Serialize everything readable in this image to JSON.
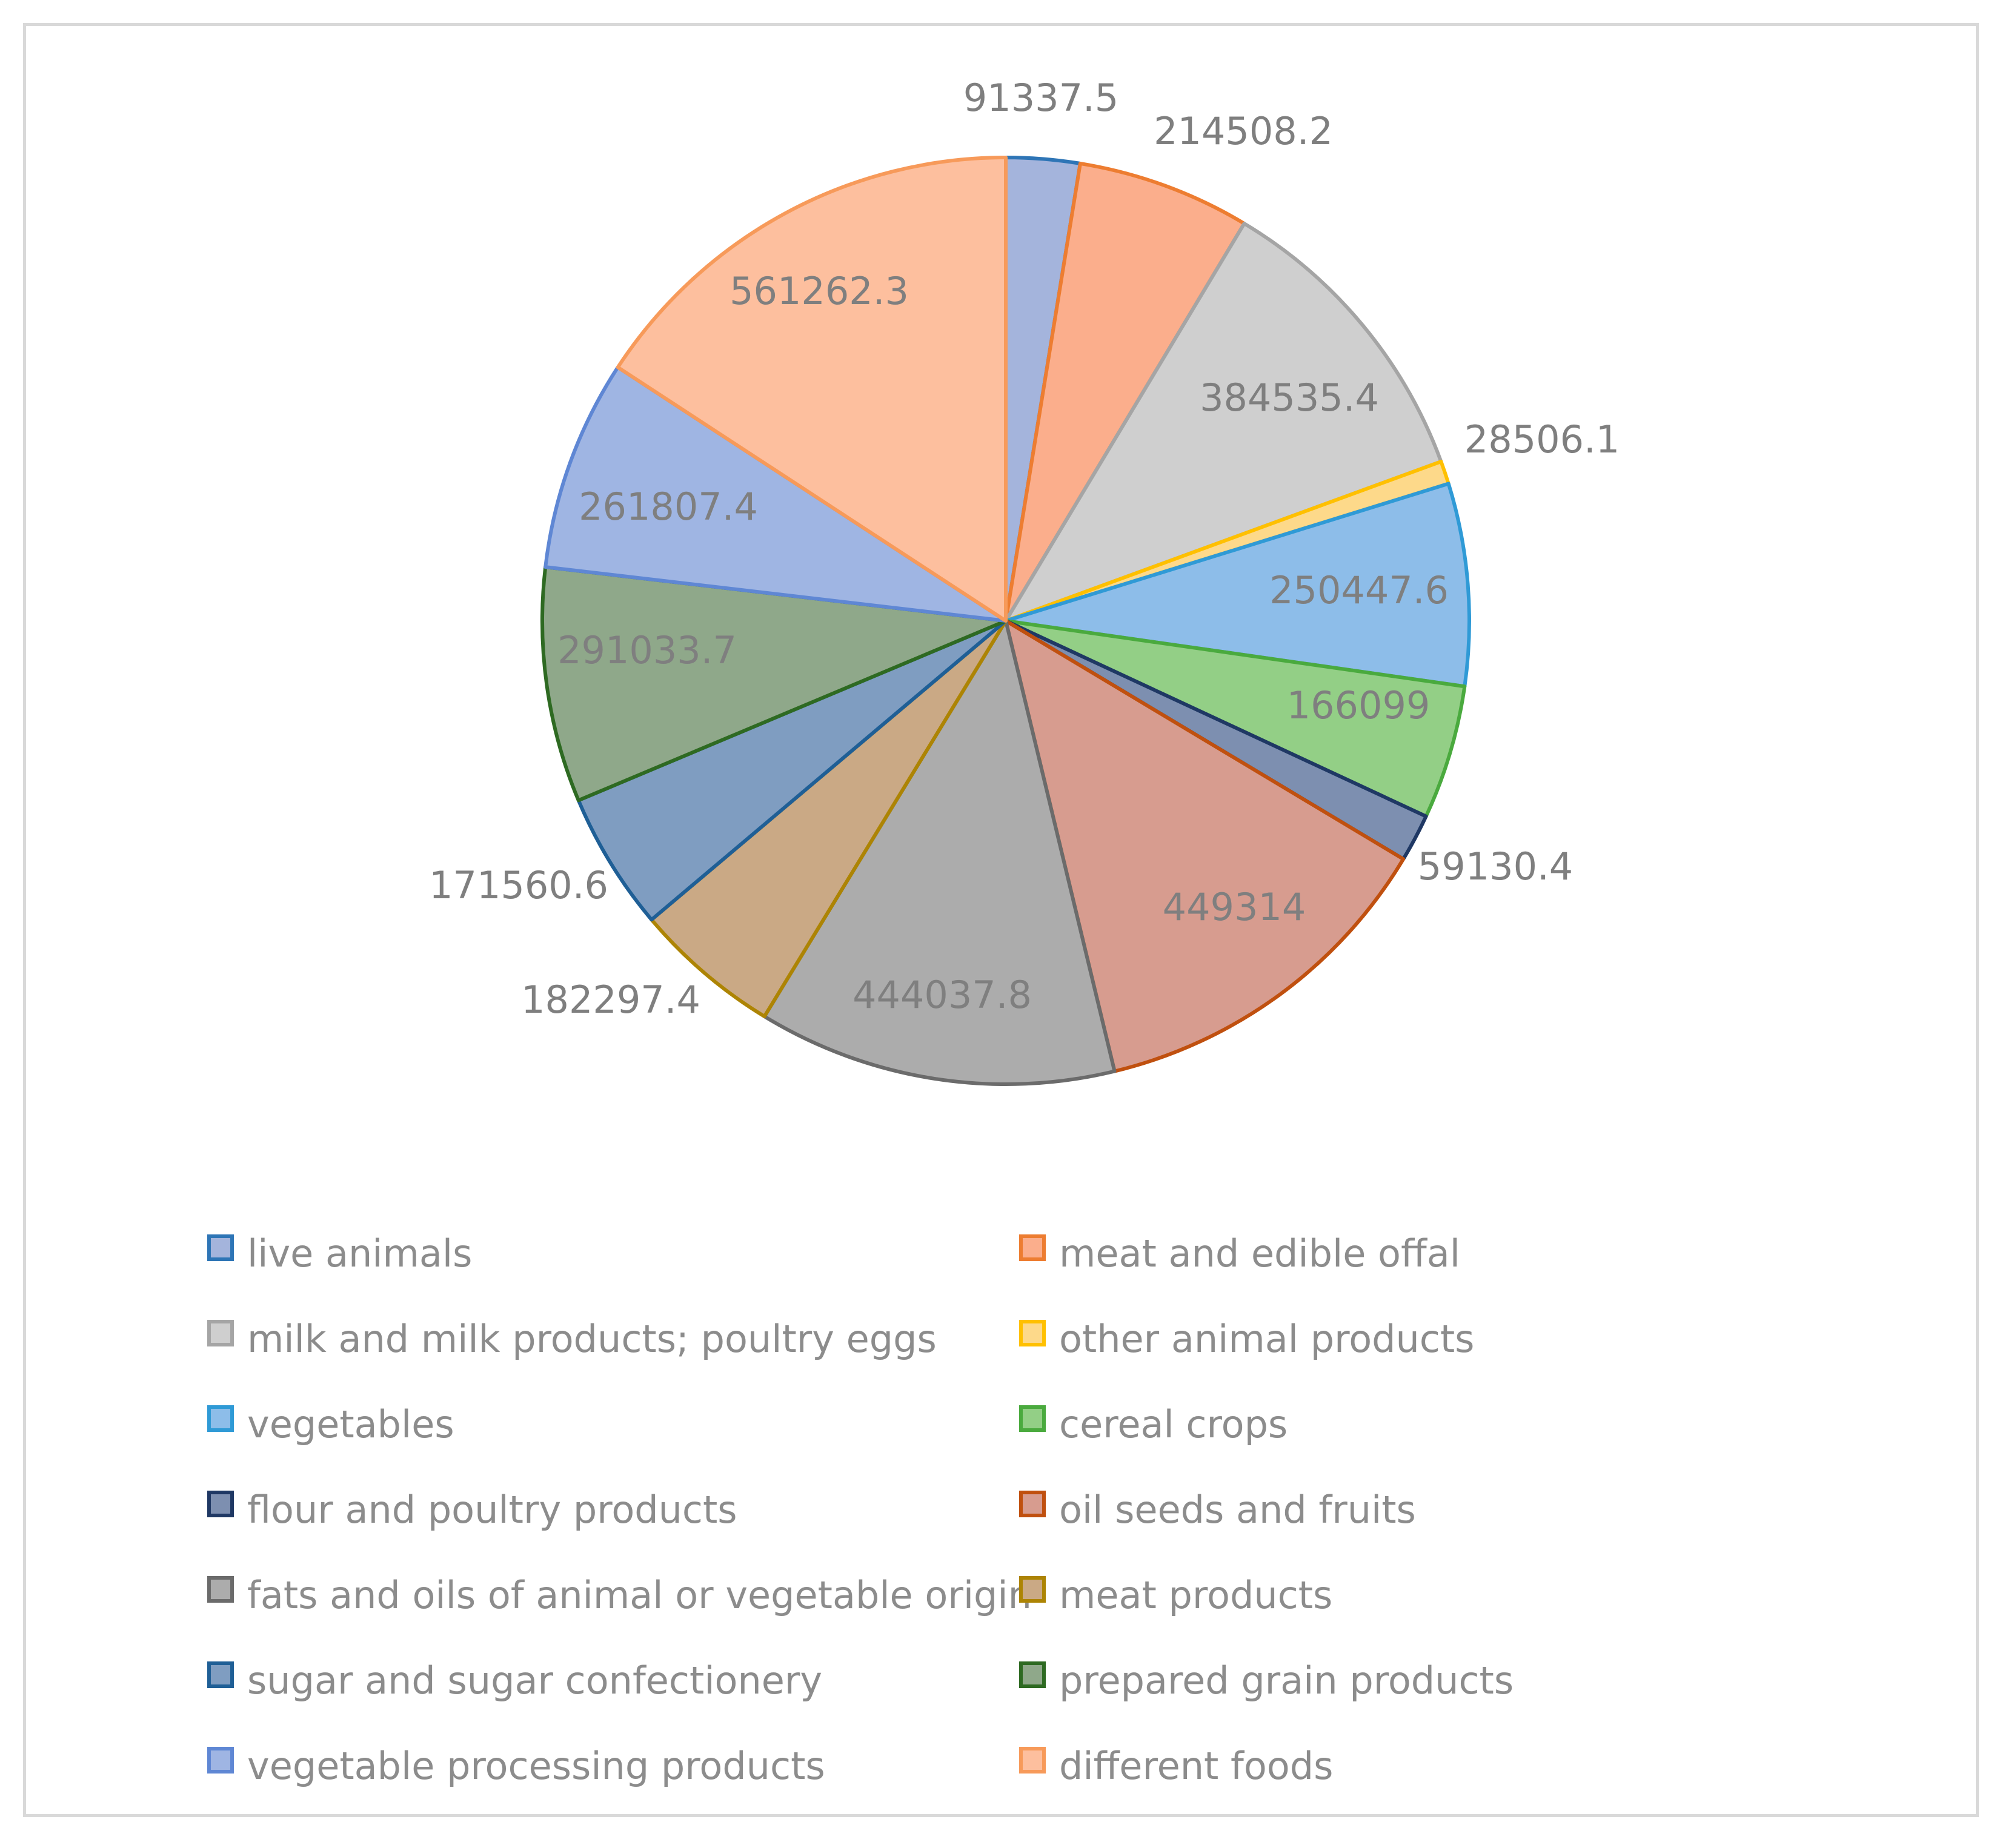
{
  "chart_data": {
    "type": "pie",
    "title": "",
    "legend_position": "bottom",
    "slices": [
      {
        "label": "live animals",
        "value": 91337.5,
        "label_text": "91337.5",
        "fill": "#a4b4dc",
        "stroke": "#2e75b6"
      },
      {
        "label": "meat and edible offal",
        "value": 214508.2,
        "label_text": "214508.2",
        "fill": "#fbae8c",
        "stroke": "#ed7d31"
      },
      {
        "label": "milk and milk products; poultry eggs",
        "value": 384535.4,
        "label_text": "384535.4",
        "fill": "#cfcfcf",
        "stroke": "#a5a5a5"
      },
      {
        "label": "other animal products",
        "value": 28506.1,
        "label_text": "28506.1",
        "fill": "#fdd98a",
        "stroke": "#ffc000"
      },
      {
        "label": "vegetables",
        "value": 250447.6,
        "label_text": "250447.6",
        "fill": "#8dbde9",
        "stroke": "#2f9ad6"
      },
      {
        "label": "cereal crops",
        "value": 166099,
        "label_text": "166099",
        "fill": "#93cf86",
        "stroke": "#4aaa3e"
      },
      {
        "label": "flour and poultry products",
        "value": 59130.4,
        "label_text": "59130.4",
        "fill": "#7d8fb0",
        "stroke": "#1f3864"
      },
      {
        "label": "oil seeds and fruits",
        "value": 449314,
        "label_text": "449314",
        "fill": "#d79c8f",
        "stroke": "#c0500f"
      },
      {
        "label": "fats and oils of animal or vegetable origin",
        "value": 444037.8,
        "label_text": "444037.8",
        "fill": "#acacac",
        "stroke": "#6b6b6b"
      },
      {
        "label": "meat products",
        "value": 182297.4,
        "label_text": "182297.4",
        "fill": "#caa985",
        "stroke": "#ad8404"
      },
      {
        "label": "sugar and sugar confectionery",
        "value": 171560.6,
        "label_text": "171560.6",
        "fill": "#7f9dc1",
        "stroke": "#1f5f96"
      },
      {
        "label": "prepared grain products",
        "value": 291033.7,
        "label_text": "291033.7",
        "fill": "#8fa88a",
        "stroke": "#2e6a22"
      },
      {
        "label": "vegetable processing products",
        "value": 261807.4,
        "label_text": "261807.4",
        "fill": "#9fb5e3",
        "stroke": "#5f87d4"
      },
      {
        "label": "different foods",
        "value": 561262.3,
        "label_text": "561262.3",
        "fill": "#fdbf9e",
        "stroke": "#f79a5a"
      }
    ]
  }
}
